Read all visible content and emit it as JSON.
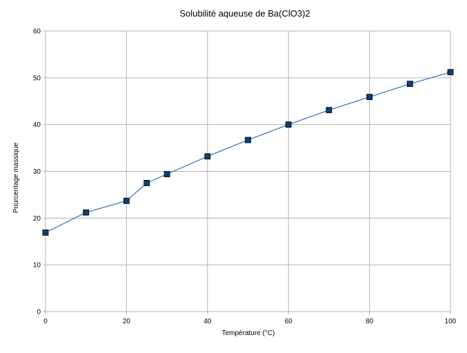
{
  "chart_data": {
    "type": "line",
    "title": "Solubilité aqueuse de Ba(ClO3)2",
    "xlabel": "Température  (°C)",
    "ylabel": "Pourcentage  massique",
    "xlim": [
      0,
      100
    ],
    "ylim": [
      0,
      60
    ],
    "x_ticks": [
      0,
      20,
      40,
      60,
      80,
      100
    ],
    "y_ticks": [
      0,
      10,
      20,
      30,
      40,
      50,
      60
    ],
    "grid": true,
    "legend": "none",
    "series": [
      {
        "x": [
          0,
          10,
          20,
          25,
          30,
          40,
          50,
          60,
          70,
          80,
          90,
          100
        ],
        "y": [
          16.9,
          21.2,
          23.7,
          27.5,
          29.4,
          33.2,
          36.7,
          40.0,
          43.1,
          45.9,
          48.7,
          51.2
        ],
        "line_color": "#2a6fb5",
        "marker_color": "#0e3f74",
        "marker": "square"
      }
    ],
    "colors": {
      "grid": "#b3b3b3",
      "axis": "#b3b3b3"
    }
  }
}
